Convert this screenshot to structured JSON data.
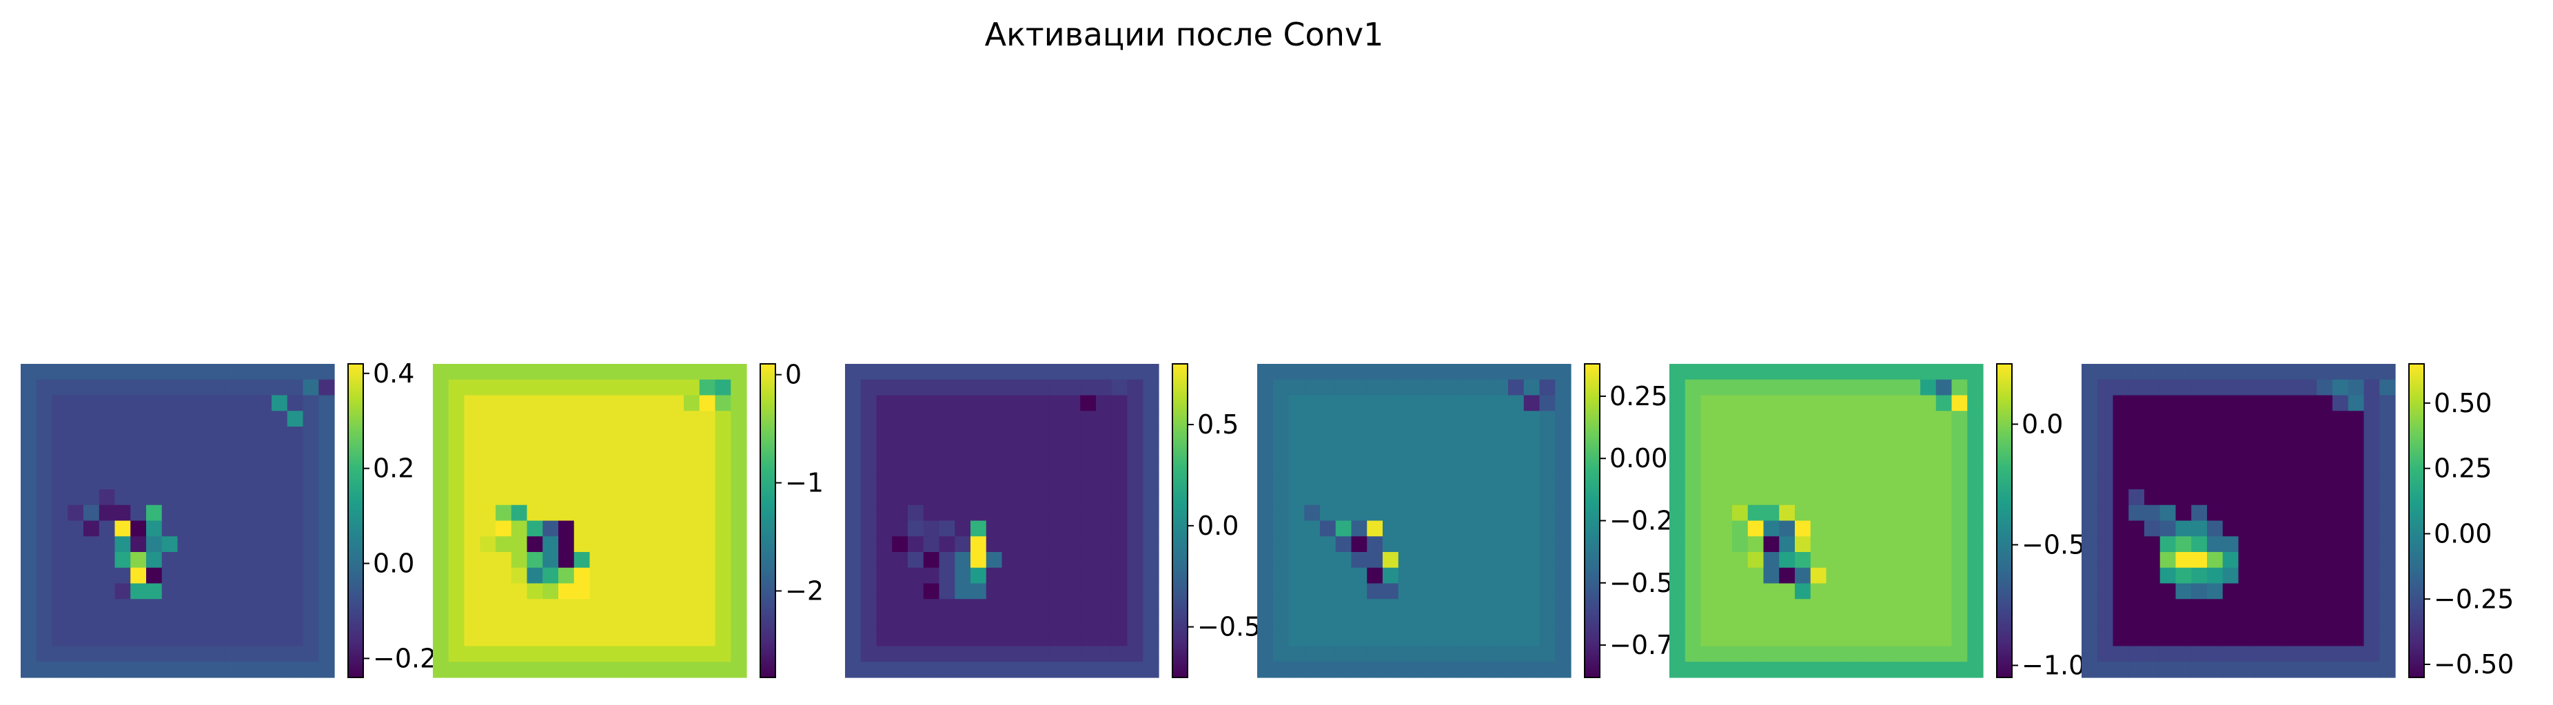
{
  "figure": {
    "suptitle": "Активации после Conv1"
  },
  "colormap": {
    "name": "viridis",
    "stops": [
      "#440154",
      "#482878",
      "#3e4989",
      "#31688e",
      "#26828e",
      "#1f9e89",
      "#35b779",
      "#6ece58",
      "#b5de2b",
      "#fde725"
    ]
  },
  "chart_data": [
    {
      "type": "heatmap",
      "grid_size": [
        20,
        20
      ],
      "vmin": -0.24,
      "vmax": 0.42,
      "colorbar_ticks": [
        -0.2,
        0.0,
        0.2,
        0.4
      ],
      "colorbar_tick_labels": [
        "−0.2",
        "0.0",
        "0.2",
        "0.4"
      ],
      "values_approx": {
        "outer_border": -0.05,
        "inner_border": -0.08,
        "interior": -0.1,
        "notable_cells": [
          [
            1,
            18,
            0.0
          ],
          [
            1,
            19,
            -0.15
          ],
          [
            2,
            16,
            0.1
          ],
          [
            3,
            17,
            0.1
          ],
          [
            8,
            5,
            -0.15
          ],
          [
            9,
            3,
            -0.15
          ],
          [
            9,
            4,
            -0.05
          ],
          [
            9,
            5,
            -0.2
          ],
          [
            9,
            6,
            -0.2
          ],
          [
            9,
            8,
            0.2
          ],
          [
            10,
            4,
            -0.2
          ],
          [
            10,
            6,
            0.42
          ],
          [
            10,
            7,
            -0.24
          ],
          [
            10,
            8,
            0.1
          ],
          [
            11,
            6,
            0.1
          ],
          [
            11,
            7,
            -0.2
          ],
          [
            11,
            8,
            0.05
          ],
          [
            11,
            9,
            0.1
          ],
          [
            12,
            6,
            0.15
          ],
          [
            12,
            7,
            0.3
          ],
          [
            12,
            8,
            0.1
          ],
          [
            13,
            7,
            0.42
          ],
          [
            13,
            8,
            -0.24
          ],
          [
            14,
            6,
            -0.15
          ],
          [
            14,
            7,
            0.15
          ],
          [
            14,
            8,
            0.15
          ]
        ]
      }
    },
    {
      "type": "heatmap",
      "grid_size": [
        20,
        20
      ],
      "vmin": -2.8,
      "vmax": 0.1,
      "colorbar_ticks": [
        -2,
        -1,
        0
      ],
      "colorbar_tick_labels": [
        "−2",
        "−1",
        "0"
      ],
      "values_approx": {
        "outer_border": -0.35,
        "inner_border": -0.2,
        "interior": 0.0,
        "notable_cells": [
          [
            1,
            17,
            -0.8
          ],
          [
            1,
            18,
            -1.0
          ],
          [
            2,
            16,
            -0.3
          ],
          [
            2,
            17,
            0.1
          ],
          [
            2,
            18,
            -0.5
          ],
          [
            9,
            4,
            -0.5
          ],
          [
            9,
            5,
            -1.0
          ],
          [
            10,
            4,
            0.1
          ],
          [
            10,
            5,
            -0.3
          ],
          [
            10,
            6,
            -1.0
          ],
          [
            10,
            7,
            -2.0
          ],
          [
            10,
            8,
            -2.8
          ],
          [
            11,
            3,
            -0.1
          ],
          [
            11,
            4,
            -0.3
          ],
          [
            11,
            5,
            -0.3
          ],
          [
            11,
            6,
            -2.8
          ],
          [
            11,
            7,
            -1.5
          ],
          [
            11,
            8,
            -2.8
          ],
          [
            12,
            5,
            -0.3
          ],
          [
            12,
            6,
            -0.8
          ],
          [
            12,
            7,
            -1.5
          ],
          [
            12,
            8,
            -2.8
          ],
          [
            12,
            9,
            -1.0
          ],
          [
            13,
            5,
            -0.1
          ],
          [
            13,
            6,
            -1.5
          ],
          [
            13,
            7,
            -1.0
          ],
          [
            13,
            8,
            -0.5
          ],
          [
            13,
            9,
            0.1
          ],
          [
            14,
            6,
            -0.2
          ],
          [
            14,
            7,
            -0.3
          ],
          [
            14,
            8,
            0.1
          ],
          [
            14,
            9,
            0.1
          ]
        ]
      }
    },
    {
      "type": "heatmap",
      "grid_size": [
        20,
        20
      ],
      "vmin": -0.75,
      "vmax": 0.8,
      "colorbar_ticks": [
        -0.5,
        0.0,
        0.5
      ],
      "colorbar_tick_labels": [
        "−0.5",
        "0.0",
        "0.5"
      ],
      "values_approx": {
        "outer_border": -0.4,
        "inner_border": -0.5,
        "interior": -0.6,
        "notable_cells": [
          [
            1,
            17,
            -0.45
          ],
          [
            2,
            15,
            -0.75
          ],
          [
            2,
            16,
            -0.6
          ],
          [
            9,
            3,
            -0.6
          ],
          [
            9,
            4,
            -0.5
          ],
          [
            10,
            4,
            -0.45
          ],
          [
            10,
            5,
            -0.5
          ],
          [
            10,
            6,
            -0.45
          ],
          [
            10,
            8,
            0.25
          ],
          [
            11,
            3,
            -0.75
          ],
          [
            11,
            5,
            -0.5
          ],
          [
            11,
            7,
            -0.5
          ],
          [
            11,
            8,
            0.8
          ],
          [
            12,
            4,
            -0.45
          ],
          [
            12,
            5,
            -0.75
          ],
          [
            12,
            6,
            -0.45
          ],
          [
            12,
            7,
            -0.2
          ],
          [
            12,
            8,
            0.8
          ],
          [
            12,
            9,
            -0.2
          ],
          [
            13,
            6,
            -0.45
          ],
          [
            13,
            7,
            -0.2
          ],
          [
            13,
            8,
            0.1
          ],
          [
            14,
            5,
            -0.75
          ],
          [
            14,
            6,
            -0.45
          ],
          [
            14,
            7,
            -0.2
          ],
          [
            14,
            8,
            -0.2
          ]
        ]
      }
    },
    {
      "type": "heatmap",
      "grid_size": [
        20,
        20
      ],
      "vmin": -0.88,
      "vmax": 0.38,
      "colorbar_ticks": [
        -0.75,
        -0.5,
        -0.25,
        0.0,
        0.25
      ],
      "colorbar_tick_labels": [
        "−0.75",
        "−0.50",
        "−0.25",
        "0.00",
        "0.25"
      ],
      "values_approx": {
        "outer_border": -0.45,
        "inner_border": -0.4,
        "interior": -0.35,
        "notable_cells": [
          [
            1,
            16,
            -0.6
          ],
          [
            1,
            17,
            -0.4
          ],
          [
            1,
            18,
            -0.6
          ],
          [
            2,
            17,
            -0.75
          ],
          [
            2,
            18,
            -0.55
          ],
          [
            9,
            3,
            -0.5
          ],
          [
            10,
            4,
            -0.55
          ],
          [
            10,
            5,
            -0.1
          ],
          [
            10,
            6,
            -0.5
          ],
          [
            10,
            7,
            0.35
          ],
          [
            11,
            5,
            -0.55
          ],
          [
            11,
            6,
            -0.88
          ],
          [
            11,
            7,
            -0.55
          ],
          [
            12,
            6,
            -0.55
          ],
          [
            12,
            7,
            -0.55
          ],
          [
            12,
            8,
            0.3
          ],
          [
            13,
            7,
            -0.88
          ],
          [
            13,
            8,
            -0.25
          ],
          [
            14,
            7,
            -0.55
          ],
          [
            14,
            8,
            -0.55
          ]
        ]
      }
    },
    {
      "type": "heatmap",
      "grid_size": [
        20,
        20
      ],
      "vmin": -1.05,
      "vmax": 0.25,
      "colorbar_ticks": [
        -1.0,
        -0.5,
        0.0
      ],
      "colorbar_tick_labels": [
        "−1.0",
        "−0.5",
        "0.0"
      ],
      "values_approx": {
        "outer_border": -0.2,
        "inner_border": -0.05,
        "interior": 0.0,
        "notable_cells": [
          [
            1,
            16,
            -0.3
          ],
          [
            1,
            17,
            -0.6
          ],
          [
            2,
            17,
            -0.2
          ],
          [
            2,
            18,
            0.25
          ],
          [
            9,
            4,
            0.1
          ],
          [
            9,
            5,
            -0.2
          ],
          [
            9,
            6,
            -0.2
          ],
          [
            9,
            7,
            0.15
          ],
          [
            10,
            4,
            -0.05
          ],
          [
            10,
            5,
            0.25
          ],
          [
            10,
            6,
            -0.5
          ],
          [
            10,
            7,
            -0.6
          ],
          [
            10,
            8,
            0.25
          ],
          [
            11,
            4,
            -0.05
          ],
          [
            11,
            6,
            -1.05
          ],
          [
            11,
            7,
            -0.5
          ],
          [
            11,
            8,
            0.15
          ],
          [
            12,
            5,
            0.1
          ],
          [
            12,
            6,
            -0.6
          ],
          [
            12,
            7,
            -0.3
          ],
          [
            12,
            8,
            -0.2
          ],
          [
            13,
            6,
            -0.6
          ],
          [
            13,
            7,
            -1.05
          ],
          [
            13,
            8,
            -0.6
          ],
          [
            13,
            9,
            0.2
          ],
          [
            14,
            8,
            -0.3
          ]
        ]
      }
    },
    {
      "type": "heatmap",
      "grid_size": [
        20,
        20
      ],
      "vmin": -0.55,
      "vmax": 0.65,
      "colorbar_ticks": [
        -0.5,
        -0.25,
        0.0,
        0.25,
        0.5
      ],
      "colorbar_tick_labels": [
        "−0.50",
        "−0.25",
        "0.00",
        "0.25",
        "0.50"
      ],
      "values_approx": {
        "outer_border": -0.25,
        "inner_border": -0.3,
        "interior": -0.55,
        "notable_cells": [
          [
            1,
            15,
            -0.2
          ],
          [
            1,
            16,
            -0.1
          ],
          [
            1,
            17,
            -0.15
          ],
          [
            1,
            19,
            -0.15
          ],
          [
            2,
            16,
            -0.3
          ],
          [
            2,
            17,
            -0.1
          ],
          [
            8,
            3,
            -0.3
          ],
          [
            9,
            3,
            -0.2
          ],
          [
            9,
            4,
            -0.2
          ],
          [
            9,
            5,
            -0.1
          ],
          [
            9,
            7,
            -0.2
          ],
          [
            10,
            4,
            -0.25
          ],
          [
            10,
            5,
            -0.2
          ],
          [
            10,
            6,
            0.0
          ],
          [
            10,
            7,
            0.0
          ],
          [
            10,
            8,
            -0.2
          ],
          [
            11,
            5,
            0.2
          ],
          [
            11,
            6,
            0.3
          ],
          [
            11,
            7,
            0.2
          ],
          [
            11,
            8,
            -0.1
          ],
          [
            11,
            9,
            -0.1
          ],
          [
            12,
            5,
            0.4
          ],
          [
            12,
            6,
            0.65
          ],
          [
            12,
            7,
            0.65
          ],
          [
            12,
            8,
            0.4
          ],
          [
            12,
            9,
            0.1
          ],
          [
            13,
            5,
            0.1
          ],
          [
            13,
            6,
            0.2
          ],
          [
            13,
            7,
            0.15
          ],
          [
            13,
            8,
            0.1
          ],
          [
            13,
            9,
            0.0
          ],
          [
            14,
            6,
            -0.1
          ],
          [
            14,
            7,
            -0.15
          ],
          [
            14,
            8,
            -0.1
          ]
        ]
      }
    }
  ]
}
